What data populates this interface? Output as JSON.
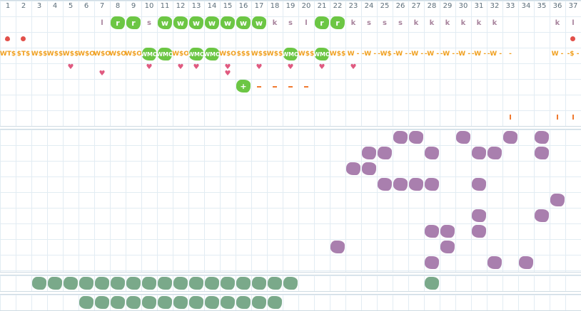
{
  "columns": [
    "1",
    "2",
    "3",
    "4",
    "5",
    "6",
    "7",
    "8",
    "9",
    "10",
    "11",
    "12",
    "13",
    "14",
    "15",
    "16",
    "17",
    "18",
    "19",
    "20",
    "21",
    "22",
    "23",
    "24",
    "25",
    "26",
    "27",
    "28",
    "29",
    "30",
    "31",
    "32",
    "33",
    "34",
    "35",
    "36",
    "37"
  ],
  "top_row": [
    {
      "col": 7,
      "text": "l",
      "kind": "k"
    },
    {
      "col": 8,
      "text": "r",
      "kind": "green"
    },
    {
      "col": 9,
      "text": "r",
      "kind": "green"
    },
    {
      "col": 10,
      "text": "s",
      "kind": "k"
    },
    {
      "col": 11,
      "text": "w",
      "kind": "green"
    },
    {
      "col": 12,
      "text": "w",
      "kind": "green"
    },
    {
      "col": 13,
      "text": "w",
      "kind": "green"
    },
    {
      "col": 14,
      "text": "w",
      "kind": "green"
    },
    {
      "col": 15,
      "text": "w",
      "kind": "green"
    },
    {
      "col": 16,
      "text": "w",
      "kind": "green"
    },
    {
      "col": 17,
      "text": "w",
      "kind": "green"
    },
    {
      "col": 18,
      "text": "k",
      "kind": "k"
    },
    {
      "col": 19,
      "text": "s",
      "kind": "k"
    },
    {
      "col": 20,
      "text": "l",
      "kind": "k"
    },
    {
      "col": 21,
      "text": "r",
      "kind": "green"
    },
    {
      "col": 22,
      "text": "r",
      "kind": "green"
    },
    {
      "col": 23,
      "text": "k",
      "kind": "k"
    },
    {
      "col": 24,
      "text": "s",
      "kind": "k"
    },
    {
      "col": 25,
      "text": "s",
      "kind": "k"
    },
    {
      "col": 26,
      "text": "s",
      "kind": "k"
    },
    {
      "col": 27,
      "text": "k",
      "kind": "k"
    },
    {
      "col": 28,
      "text": "k",
      "kind": "k"
    },
    {
      "col": 29,
      "text": "k",
      "kind": "k"
    },
    {
      "col": 30,
      "text": "k",
      "kind": "k"
    },
    {
      "col": 31,
      "text": "k",
      "kind": "k"
    },
    {
      "col": 32,
      "text": "k",
      "kind": "k"
    },
    {
      "col": 36,
      "text": "k",
      "kind": "k"
    },
    {
      "col": 37,
      "text": "l",
      "kind": "k"
    }
  ],
  "marker_row": [
    1,
    2,
    37
  ],
  "label_row": [
    {
      "col": 1,
      "text": "WT$",
      "kind": "orange"
    },
    {
      "col": 2,
      "text": "$T$",
      "kind": "orange"
    },
    {
      "col": 3,
      "text": "W$$",
      "kind": "orange"
    },
    {
      "col": 4,
      "text": "W$$",
      "kind": "orange"
    },
    {
      "col": 5,
      "text": "W$$",
      "kind": "orange"
    },
    {
      "col": 6,
      "text": "W$O",
      "kind": "orange"
    },
    {
      "col": 7,
      "text": "W$O",
      "kind": "orange"
    },
    {
      "col": 8,
      "text": "W$O",
      "kind": "orange"
    },
    {
      "col": 9,
      "text": "W$O",
      "kind": "orange"
    },
    {
      "col": 10,
      "text": "WMO",
      "kind": "green"
    },
    {
      "col": 11,
      "text": "WMO",
      "kind": "green"
    },
    {
      "col": 12,
      "text": "W$O",
      "kind": "orange"
    },
    {
      "col": 13,
      "text": "WMO",
      "kind": "green"
    },
    {
      "col": 14,
      "text": "WMO",
      "kind": "green"
    },
    {
      "col": 15,
      "text": "W$O",
      "kind": "orange"
    },
    {
      "col": 16,
      "text": "$$$",
      "kind": "orange"
    },
    {
      "col": 17,
      "text": "W$$",
      "kind": "orange"
    },
    {
      "col": 18,
      "text": "W$$",
      "kind": "orange"
    },
    {
      "col": 19,
      "text": "WMO",
      "kind": "green"
    },
    {
      "col": 20,
      "text": "W$$",
      "kind": "orange"
    },
    {
      "col": 21,
      "text": "WMO",
      "kind": "green"
    },
    {
      "col": 22,
      "text": "W$$",
      "kind": "orange"
    },
    {
      "col": 23,
      "text": "W -",
      "kind": "orange"
    },
    {
      "col": 24,
      "text": "-W -",
      "kind": "orange"
    },
    {
      "col": 25,
      "text": "-W$",
      "kind": "orange"
    },
    {
      "col": 26,
      "text": "-W -",
      "kind": "orange"
    },
    {
      "col": 27,
      "text": "-W -",
      "kind": "orange"
    },
    {
      "col": 28,
      "text": "-W -",
      "kind": "orange"
    },
    {
      "col": 29,
      "text": "-W -",
      "kind": "orange"
    },
    {
      "col": 30,
      "text": "-W -",
      "kind": "orange"
    },
    {
      "col": 31,
      "text": "-W -",
      "kind": "orange"
    },
    {
      "col": 32,
      "text": "-W -",
      "kind": "orange"
    },
    {
      "col": 33,
      "text": "-",
      "kind": "orange"
    },
    {
      "col": 36,
      "text": "W -",
      "kind": "orange"
    },
    {
      "col": 37,
      "text": "-$ -",
      "kind": "orange"
    }
  ],
  "heart_rows": [
    [
      5,
      10,
      12,
      13,
      15,
      17,
      19,
      21,
      23
    ],
    [
      7,
      15
    ]
  ],
  "plus_row": {
    "col": 16,
    "text": "+",
    "dashes": [
      17,
      18,
      19,
      20
    ]
  },
  "tick_row": [
    33,
    36,
    37
  ],
  "purple_rows": [
    [
      26,
      27,
      30,
      33,
      35
    ],
    [
      24,
      25,
      28,
      31,
      32,
      35
    ],
    [
      23,
      24
    ],
    [
      25,
      26,
      27,
      28,
      31
    ],
    [
      36
    ],
    [
      31,
      35
    ],
    [
      28,
      29,
      31
    ],
    [
      22,
      29
    ],
    [
      28,
      32,
      34
    ]
  ],
  "teal_rows": [
    [
      3,
      4,
      5,
      6,
      7,
      8,
      9,
      10,
      11,
      12,
      13,
      14,
      15,
      16,
      17,
      18,
      19,
      28
    ],
    [
      6,
      7,
      8,
      9,
      10,
      11,
      12,
      13,
      14,
      15,
      16,
      17,
      18
    ]
  ]
}
